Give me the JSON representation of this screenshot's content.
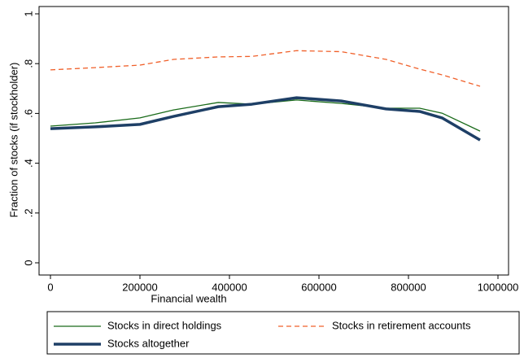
{
  "chart_data": {
    "type": "line",
    "x_label": "Financial wealth",
    "y_label": "Fraction of stocks (if stockholder)",
    "x": [
      0,
      100000,
      200000,
      275000,
      375000,
      450000,
      550000,
      650000,
      750000,
      825000,
      875000,
      960000
    ],
    "series": [
      {
        "name": "Stocks in direct holdings",
        "color": "#1a6b1a",
        "values": [
          0.549,
          0.562,
          0.582,
          0.614,
          0.644,
          0.637,
          0.654,
          0.64,
          0.621,
          0.621,
          0.601,
          0.529
        ]
      },
      {
        "name": "Stocks in retirement accounts",
        "color": "#f0602a",
        "values": [
          0.775,
          0.784,
          0.794,
          0.817,
          0.827,
          0.829,
          0.852,
          0.848,
          0.817,
          0.778,
          0.755,
          0.709
        ]
      },
      {
        "name": "Stocks altogether",
        "color": "#1e3f66",
        "values": [
          0.539,
          0.546,
          0.556,
          0.588,
          0.627,
          0.637,
          0.663,
          0.65,
          0.618,
          0.608,
          0.582,
          0.493
        ]
      }
    ],
    "xlim": [
      0,
      1000000
    ],
    "xticks": [
      0,
      200000,
      400000,
      600000,
      800000,
      1000000
    ],
    "ylim": [
      0,
      1
    ],
    "yticks": [
      0,
      {
        "value": 0.2,
        "label": ".2"
      },
      {
        "value": 0.4,
        "label": ".4"
      },
      {
        "value": 0.6,
        "label": ".6"
      },
      {
        "value": 0.8,
        "label": ".8"
      },
      1
    ]
  }
}
